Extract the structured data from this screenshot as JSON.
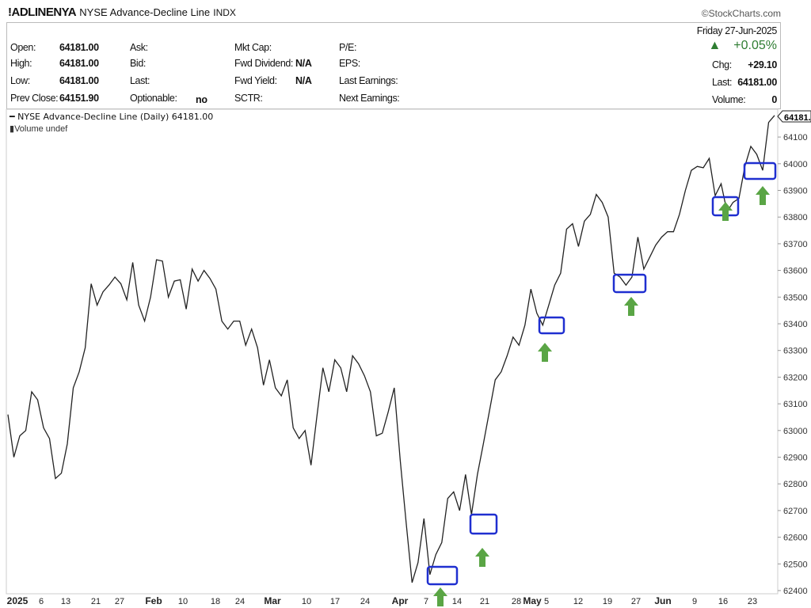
{
  "header": {
    "symbol": "!ADLINENYA",
    "name": "NYSE Advance-Decline Line",
    "exchange": "INDX",
    "brand": "©StockCharts.com"
  },
  "quote": {
    "open_label": "Open:",
    "open": "64181.00",
    "high_label": "High:",
    "high": "64181.00",
    "low_label": "Low:",
    "low": "64181.00",
    "prev_label": "Prev Close:",
    "prev": "64151.90",
    "ask_label": "Ask:",
    "bid_label": "Bid:",
    "last_label": "Last:",
    "optionable_label": "Optionable:",
    "optionable": "no",
    "mktcap_label": "Mkt Cap:",
    "fwddiv_label": "Fwd Dividend:",
    "fwddiv": "N/A",
    "fwdyield_label": "Fwd Yield:",
    "fwdyield": "N/A",
    "sctr_label": "SCTR:",
    "pe_label": "P/E:",
    "eps_label": "EPS:",
    "lastearn_label": "Last Earnings:",
    "nextearn_label": "Next Earnings:",
    "date": "Friday  27-Jun-2025",
    "pct": "+0.05%",
    "chg_label": "Chg:",
    "chg": "+29.10",
    "last2_label": "Last:",
    "last2": "64181.00",
    "volume_label": "Volume:",
    "volume": "0",
    "up_color": "#2e7d32"
  },
  "legend": {
    "line": "NYSE Advance-Decline Line (Daily) 64181.00",
    "volume": "Volume undef"
  },
  "chart_data": {
    "type": "line",
    "title": "NYSE Advance-Decline Line (Daily)",
    "last_value_label": "64181.",
    "ylim": [
      62380,
      64200
    ],
    "yticks": [
      "64100",
      "64000",
      "63900",
      "63800",
      "63700",
      "63600",
      "63500",
      "63400",
      "63300",
      "63200",
      "63100",
      "63000",
      "62900",
      "62800",
      "62700",
      "62600",
      "62500",
      "62400"
    ],
    "xticks": [
      "2025",
      "6",
      "13",
      "21",
      "27",
      "Feb",
      "10",
      "18",
      "24",
      "Mar",
      "10",
      "17",
      "24",
      "Apr",
      "7",
      "14",
      "21",
      "28",
      "May",
      "5",
      "12",
      "19",
      "27",
      "Jun",
      "9",
      "16",
      "23"
    ],
    "series": [
      {
        "name": "!ADLINENYA",
        "color": "#222",
        "values": [
          63060,
          62900,
          62980,
          63000,
          63145,
          63115,
          63010,
          62970,
          62820,
          62840,
          62950,
          63160,
          63220,
          63310,
          63550,
          63470,
          63520,
          63545,
          63575,
          63550,
          63490,
          63630,
          63470,
          63410,
          63500,
          63640,
          63635,
          63500,
          63560,
          63565,
          63455,
          63605,
          63560,
          63600,
          63570,
          63530,
          63410,
          63380,
          63410,
          63410,
          63320,
          63380,
          63310,
          63170,
          63265,
          63160,
          63130,
          63190,
          63010,
          62970,
          63000,
          62870,
          63055,
          63235,
          63145,
          63265,
          63235,
          63145,
          63280,
          63250,
          63205,
          63145,
          62980,
          62990,
          63070,
          63160,
          62890,
          62655,
          62430,
          62505,
          62670,
          62460,
          62535,
          62580,
          62745,
          62770,
          62700,
          62835,
          62685,
          62835,
          62950,
          63070,
          63190,
          63220,
          63280,
          63350,
          63320,
          63395,
          63530,
          63440,
          63395,
          63470,
          63545,
          63590,
          63755,
          63775,
          63690,
          63785,
          63810,
          63885,
          63855,
          63800,
          63590,
          63575,
          63545,
          63575,
          63725,
          63605,
          63650,
          63695,
          63725,
          63745,
          63745,
          63810,
          63900,
          63975,
          63990,
          63985,
          64020,
          63880,
          63925,
          63820,
          63855,
          63870,
          63990,
          64065,
          64035,
          63975,
          64155,
          64181
        ]
      }
    ],
    "annotations": {
      "box_color": "#1f2fd0",
      "arrow_color": "#5aa545",
      "count": 6
    }
  }
}
